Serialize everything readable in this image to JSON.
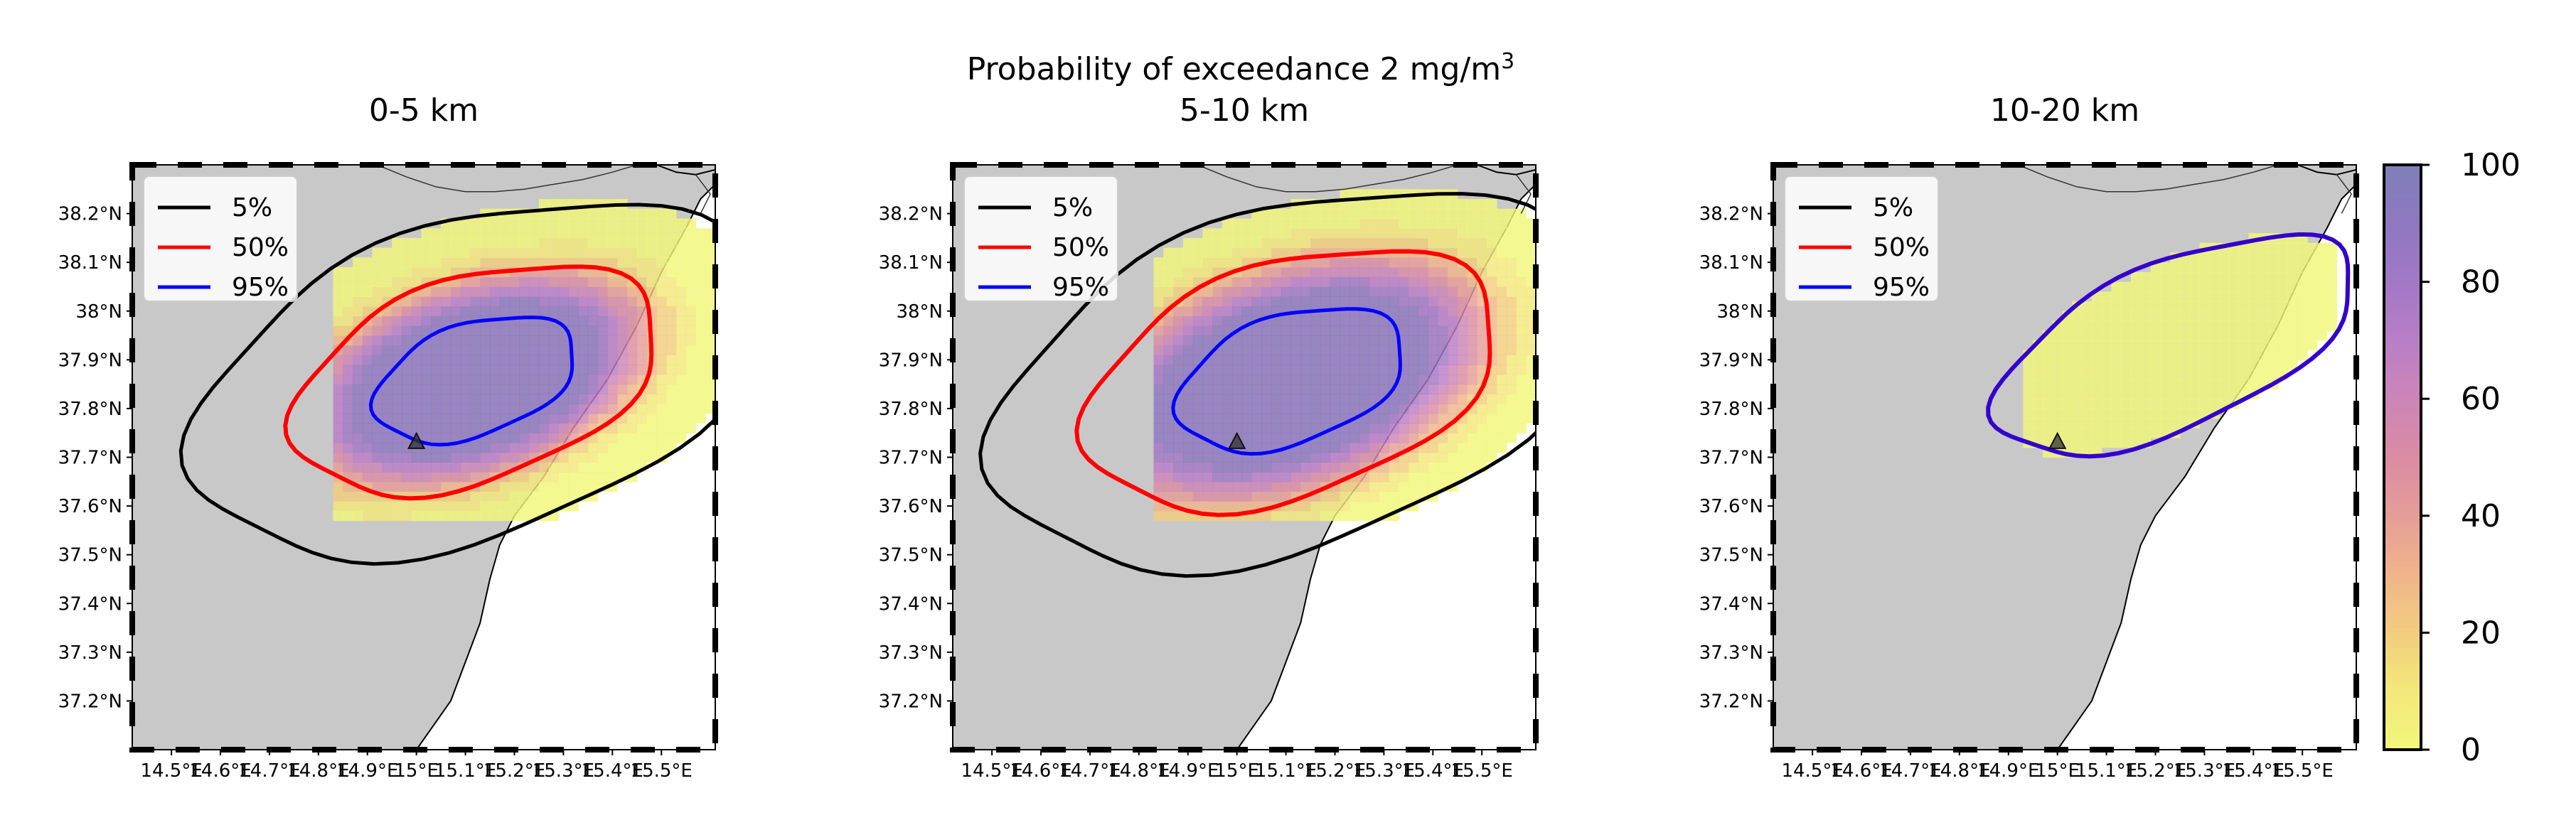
{
  "suptitle_main": "Probability of exceedance 2 mg/m",
  "suptitle_sup": "3",
  "colors": {
    "sea": "#ffffff",
    "land": "#c8c8c8",
    "contour_5": "#000000",
    "contour_50": "#ff0000",
    "contour_95": "#0000ff",
    "contour_all": "#3300cc",
    "vent_marker": "#333333"
  },
  "colormap": [
    "#f2f77a",
    "#f3e87b",
    "#f2cd7e",
    "#f0b48a",
    "#e59d98",
    "#d98ca3",
    "#cc85b7",
    "#b97ec7",
    "#a278c5",
    "#8e78bf",
    "#7f80b8"
  ],
  "panels": [
    {
      "title": "0-5 km",
      "legend": [
        "5%",
        "50%",
        "95%"
      ],
      "contour_levels": [
        5,
        50,
        95
      ],
      "grid_extent": {
        "lon": [
          14.83,
          15.53
        ],
        "lat": [
          37.57,
          38.25
        ]
      }
    },
    {
      "title": "5-10 km",
      "legend": [
        "5%",
        "50%",
        "95%"
      ],
      "contour_levels": [
        5,
        50,
        95
      ],
      "grid_extent": {
        "lon": [
          14.83,
          15.53
        ],
        "lat": [
          37.57,
          38.25
        ]
      }
    },
    {
      "title": "10-20 km",
      "legend": [
        "5%",
        "50%",
        "95%"
      ],
      "contour_levels": [
        5,
        50,
        95
      ],
      "grid_extent": {
        "lon": [
          14.95,
          15.52
        ],
        "lat": [
          37.69,
          38.18
        ]
      }
    }
  ],
  "map_extent": {
    "lon": [
      14.42,
      15.61
    ],
    "lat": [
      37.1,
      38.3
    ]
  },
  "vent": {
    "lon": 15.0,
    "lat": 37.73
  },
  "x_ticks": [
    {
      "v": 14.5,
      "label": "14.5°E"
    },
    {
      "v": 14.6,
      "label": "14.6°E"
    },
    {
      "v": 14.7,
      "label": "14.7°E"
    },
    {
      "v": 14.8,
      "label": "14.8°E"
    },
    {
      "v": 14.9,
      "label": "14.9°E"
    },
    {
      "v": 15.0,
      "label": "15°E"
    },
    {
      "v": 15.1,
      "label": "15.1°E"
    },
    {
      "v": 15.2,
      "label": "15.2°E"
    },
    {
      "v": 15.3,
      "label": "15.3°E"
    },
    {
      "v": 15.4,
      "label": "15.4°E"
    },
    {
      "v": 15.5,
      "label": "15.5°E"
    }
  ],
  "y_ticks": [
    {
      "v": 37.2,
      "label": "37.2°N"
    },
    {
      "v": 37.3,
      "label": "37.3°N"
    },
    {
      "v": 37.4,
      "label": "37.4°N"
    },
    {
      "v": 37.5,
      "label": "37.5°N"
    },
    {
      "v": 37.6,
      "label": "37.6°N"
    },
    {
      "v": 37.7,
      "label": "37.7°N"
    },
    {
      "v": 37.8,
      "label": "37.8°N"
    },
    {
      "v": 37.9,
      "label": "37.9°N"
    },
    {
      "v": 38.0,
      "label": "38°N"
    },
    {
      "v": 38.1,
      "label": "38.1°N"
    },
    {
      "v": 38.2,
      "label": "38.2°N"
    }
  ],
  "colorbar": {
    "ticks": [
      0,
      20,
      40,
      60,
      80,
      100
    ],
    "labels": [
      "0",
      "20",
      "40",
      "60",
      "80",
      "100"
    ]
  },
  "chart_data": {
    "type": "heatmap",
    "variable": "probability of exceedance (%)",
    "threshold": "2 mg/m3",
    "colorbar_range": [
      0,
      100
    ],
    "contours": [
      {
        "level": 5,
        "legend": "5%"
      },
      {
        "level": 50,
        "legend": "50%"
      },
      {
        "level": 95,
        "legend": "95%"
      }
    ],
    "panels": [
      {
        "title": "0-5 km",
        "max_probability": 100,
        "core_center": {
          "lon": 15.1,
          "lat": 37.85
        }
      },
      {
        "title": "5-10 km",
        "max_probability": 100,
        "core_center": {
          "lon": 15.08,
          "lat": 37.85
        }
      },
      {
        "title": "10-20 km",
        "max_probability": 5,
        "core_center": {
          "lon": 15.25,
          "lat": 37.93
        }
      }
    ],
    "xlim": [
      14.42,
      15.61
    ],
    "ylim": [
      37.1,
      38.3
    ]
  }
}
